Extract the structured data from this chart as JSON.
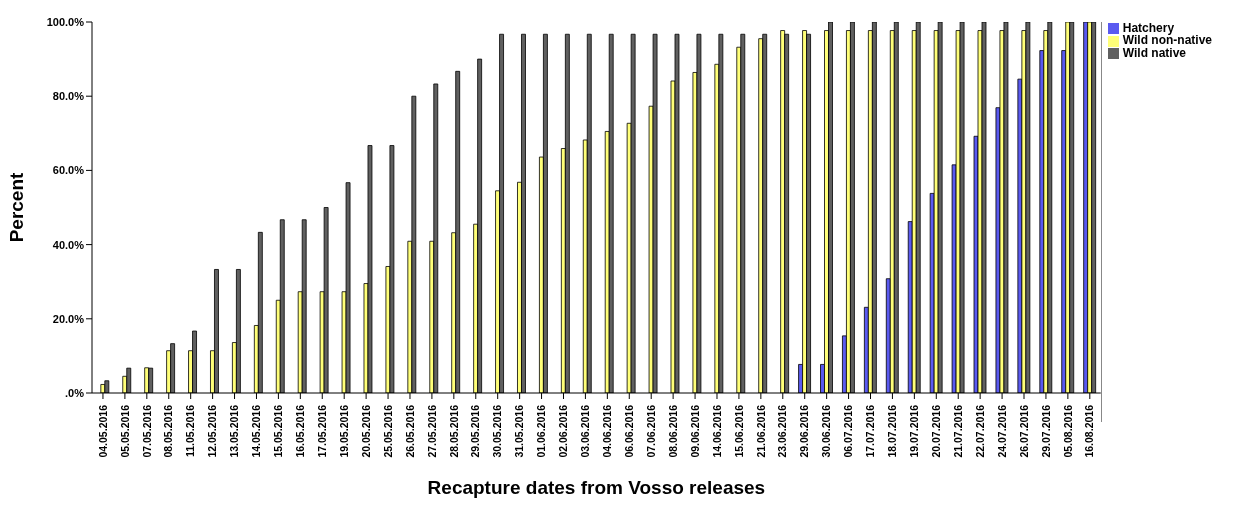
{
  "chart_data": {
    "type": "bar",
    "xlabel": "Recapture dates from Vosso releases",
    "ylabel": "Percent",
    "categories": [
      "04.05.2016",
      "05.05.2016",
      "07.05.2016",
      "08.05.2016",
      "11.05.2016",
      "12.05.2016",
      "13.05.2016",
      "14.05.2016",
      "15.05.2016",
      "16.05.2016",
      "17.05.2016",
      "19.05.2016",
      "20.05.2016",
      "25.05.2016",
      "26.05.2016",
      "27.05.2016",
      "28.05.2016",
      "29.05.2016",
      "30.05.2016",
      "31.05.2016",
      "01.06.2016",
      "02.06.2016",
      "03.06.2016",
      "04.06.2016",
      "06.06.2016",
      "07.06.2016",
      "08.06.2016",
      "09.06.2016",
      "14.06.2016",
      "15.06.2016",
      "21.06.2016",
      "23.06.2016",
      "29.06.2016",
      "30.06.2016",
      "06.07.2016",
      "17.07.2016",
      "18.07.2016",
      "19.07.2016",
      "20.07.2016",
      "21.07.2016",
      "22.07.2016",
      "24.07.2016",
      "26.07.2016",
      "29.07.2016",
      "05.08.2016",
      "16.08.2016"
    ],
    "series": [
      {
        "name": "Hatchery",
        "color": "#5a5af0",
        "values": [
          null,
          null,
          null,
          null,
          null,
          null,
          null,
          null,
          null,
          null,
          null,
          null,
          null,
          null,
          null,
          null,
          null,
          null,
          null,
          null,
          null,
          null,
          null,
          null,
          null,
          null,
          null,
          null,
          null,
          null,
          null,
          null,
          7.7,
          7.7,
          15.4,
          23.1,
          30.8,
          46.2,
          53.8,
          61.5,
          69.2,
          76.9,
          84.6,
          92.3,
          92.3,
          100
        ]
      },
      {
        "name": "Wild non-native",
        "color": "#ffff78",
        "values": [
          2.3,
          4.5,
          6.8,
          11.4,
          11.4,
          11.4,
          13.6,
          18.2,
          25.0,
          27.3,
          27.3,
          27.3,
          29.5,
          34.1,
          40.9,
          40.9,
          43.2,
          45.5,
          54.5,
          56.8,
          63.6,
          65.9,
          68.2,
          70.5,
          72.7,
          77.3,
          84.1,
          86.4,
          88.6,
          93.2,
          95.5,
          97.7,
          97.7,
          97.7,
          97.7,
          97.7,
          97.7,
          97.7,
          97.7,
          97.7,
          97.7,
          97.7,
          97.7,
          97.7,
          100,
          100
        ]
      },
      {
        "name": "Wild native",
        "color": "#606060",
        "values": [
          3.3,
          6.7,
          6.7,
          13.3,
          16.7,
          33.3,
          33.3,
          43.3,
          46.7,
          46.7,
          50,
          56.7,
          66.7,
          66.7,
          80,
          83.3,
          86.7,
          90,
          96.7,
          96.7,
          96.7,
          96.7,
          96.7,
          96.7,
          96.7,
          96.7,
          96.7,
          96.7,
          96.7,
          96.7,
          96.7,
          96.7,
          96.7,
          100,
          100,
          100,
          100,
          100,
          100,
          100,
          100,
          100,
          100,
          100,
          100,
          100
        ]
      }
    ],
    "ylim": [
      0,
      100
    ],
    "yticks": [
      {
        "value": 0,
        "label": ".0%"
      },
      {
        "value": 20,
        "label": "20.0%"
      },
      {
        "value": 40,
        "label": "40.0%"
      },
      {
        "value": 60,
        "label": "60.0%"
      },
      {
        "value": 80,
        "label": "80.0%"
      },
      {
        "value": 100,
        "label": "100.0%"
      }
    ],
    "grid": false,
    "legend": "top right"
  }
}
